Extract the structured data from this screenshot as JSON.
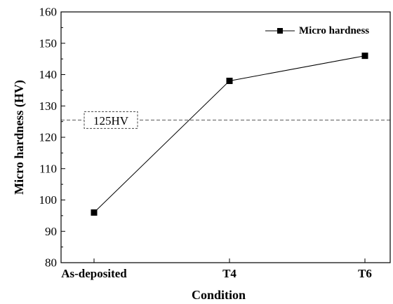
{
  "chart_data": {
    "type": "line",
    "categories": [
      "As-deposited",
      "T4",
      "T6"
    ],
    "series": [
      {
        "name": "Micro hardness",
        "values": [
          96,
          138,
          146
        ],
        "color": "#000000",
        "marker": "square"
      }
    ],
    "xlabel": "Condition",
    "ylabel": "Micro hardness (HV)",
    "ylim": [
      80,
      160
    ],
    "yticks": [
      80,
      90,
      100,
      110,
      120,
      130,
      140,
      150,
      160
    ],
    "reference_line": {
      "value": 125.5,
      "label": "125HV",
      "style": "dashed",
      "color": "#555555"
    },
    "legend_position": "top-right",
    "grid": false
  }
}
